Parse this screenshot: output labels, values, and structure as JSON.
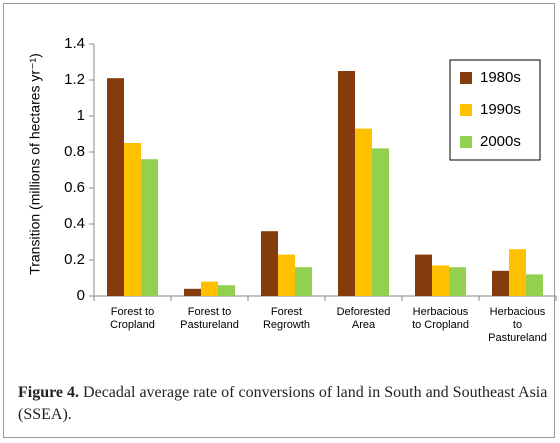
{
  "chart_data": {
    "type": "bar",
    "y_label": "Transition (millions of hectares yr⁻¹)",
    "categories": [
      "Forest to\nCropland",
      "Forest to\nPastureland",
      "Forest\nRegrowth",
      "Deforested\nArea",
      "Herbacious\nto Cropland",
      "Herbacious\nto\nPastureland"
    ],
    "series": [
      {
        "name": "1980s",
        "color": "#843c0c",
        "values": [
          1.21,
          0.04,
          0.36,
          1.25,
          0.23,
          0.14
        ]
      },
      {
        "name": "1990s",
        "color": "#ffc000",
        "values": [
          0.85,
          0.08,
          0.23,
          0.93,
          0.17,
          0.26
        ]
      },
      {
        "name": "2000s",
        "color": "#92d050",
        "values": [
          0.76,
          0.06,
          0.16,
          0.82,
          0.16,
          0.12
        ]
      }
    ],
    "ylim": [
      0,
      1.4
    ],
    "yticks": [
      0,
      0.2,
      0.4,
      0.6,
      0.8,
      1,
      1.2,
      1.4
    ],
    "grid": false,
    "legend": "upper-right"
  },
  "caption": {
    "label": "Figure 4.",
    "text": "Decadal average rate of conversions of land in South and Southeast Asia (SSEA)."
  }
}
